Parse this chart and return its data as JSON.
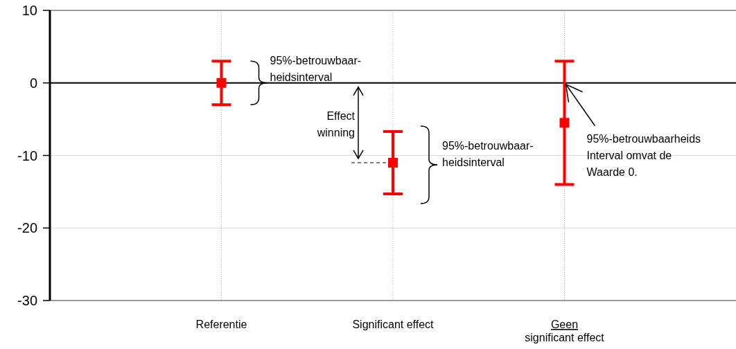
{
  "chart_data": {
    "type": "scatter",
    "categories": [
      "Referentie",
      "Significant effect",
      "Geen significant effect"
    ],
    "values": [
      0,
      -11,
      -5.5
    ],
    "errors": [
      3,
      4.3,
      8.5
    ],
    "color": "#ff0000",
    "marker": "square",
    "ylim": [
      -30,
      10
    ],
    "yticks": [
      10,
      0,
      -10,
      -20,
      -30
    ],
    "grid": true,
    "ref_lines": [
      {
        "axis": "y",
        "value": 0,
        "color": "#000000"
      }
    ],
    "annotations": [
      "95%-betrouwbaar-\nheidsinterval",
      "Effect\nwinning",
      "95%-betrouwbaar-\nheidsinterval",
      {
        "text": "95%-betrouwbaarheids\nInterval omvat de\nWaarde 0.",
        "x": "Geen significant effect",
        "y": 0
      }
    ]
  }
}
